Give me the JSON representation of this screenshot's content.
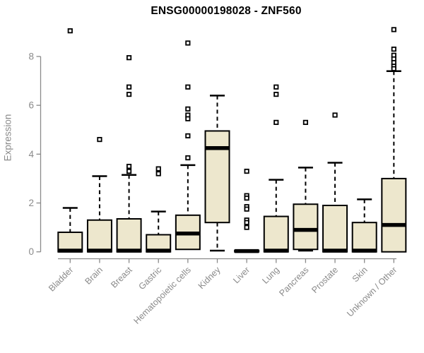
{
  "figure": {
    "title": "ENSG00000198028 - ZNF560",
    "y_axis_label": "Expression"
  },
  "chart_data": {
    "type": "boxplot",
    "title": "ENSG00000198028 - ZNF560",
    "xlabel": "",
    "ylabel": "Expression",
    "ylim": [
      0,
      9.3
    ],
    "yticks": [
      0,
      2,
      4,
      6,
      8
    ],
    "grid": false,
    "legend": null,
    "categories": [
      "Bladder",
      "Brain",
      "Breast",
      "Gastric",
      "Hematopoietic cells",
      "Kidney",
      "Liver",
      "Lung",
      "Pancreas",
      "Prostate",
      "Skin",
      "Unknown / Other"
    ],
    "boxes": [
      {
        "category": "Bladder",
        "whisker_low": 0,
        "q1": 0,
        "median": 0.05,
        "q3": 0.8,
        "whisker_high": 1.8,
        "outliers": [
          9.05
        ]
      },
      {
        "category": "Brain",
        "whisker_low": 0,
        "q1": 0,
        "median": 0.05,
        "q3": 1.3,
        "whisker_high": 3.1,
        "outliers": [
          4.6
        ]
      },
      {
        "category": "Breast",
        "whisker_low": 0,
        "q1": 0,
        "median": 0.05,
        "q3": 1.35,
        "whisker_high": 3.15,
        "outliers": [
          7.95,
          6.75,
          6.45,
          3.5,
          3.3
        ]
      },
      {
        "category": "Gastric",
        "whisker_low": 0,
        "q1": 0,
        "median": 0.05,
        "q3": 0.7,
        "whisker_high": 1.65,
        "outliers": [
          3.4,
          3.2
        ]
      },
      {
        "category": "Hematopoietic cells",
        "whisker_low": 0.1,
        "q1": 0.1,
        "median": 0.75,
        "q3": 1.5,
        "whisker_high": 3.55,
        "outliers": [
          8.55,
          6.75,
          5.85,
          5.6,
          5.45,
          4.75,
          3.85
        ]
      },
      {
        "category": "Kidney",
        "whisker_low": 0.05,
        "q1": 1.2,
        "median": 4.25,
        "q3": 4.95,
        "whisker_high": 6.4,
        "outliers": []
      },
      {
        "category": "Liver",
        "whisker_low": 0,
        "q1": 0,
        "median": 0.03,
        "q3": 0.06,
        "whisker_high": 0.06,
        "outliers": [
          3.3,
          2.3,
          2.2,
          1.85,
          1.75,
          1.3,
          1.2,
          1.0
        ]
      },
      {
        "category": "Lung",
        "whisker_low": 0,
        "q1": 0,
        "median": 0.05,
        "q3": 1.45,
        "whisker_high": 2.95,
        "outliers": [
          6.75,
          6.45,
          5.3
        ]
      },
      {
        "category": "Pancreas",
        "whisker_low": 0.05,
        "q1": 0.1,
        "median": 0.9,
        "q3": 1.95,
        "whisker_high": 3.45,
        "outliers": [
          5.3
        ]
      },
      {
        "category": "Prostate",
        "whisker_low": 0,
        "q1": 0,
        "median": 0.05,
        "q3": 1.9,
        "whisker_high": 3.65,
        "outliers": [
          5.6
        ]
      },
      {
        "category": "Skin",
        "whisker_low": 0,
        "q1": 0,
        "median": 0.05,
        "q3": 1.2,
        "whisker_high": 2.15,
        "outliers": []
      },
      {
        "category": "Unknown / Other",
        "whisker_low": 0,
        "q1": 0,
        "median": 1.1,
        "q3": 3.0,
        "whisker_high": 7.4,
        "outliers": [
          9.1,
          8.3,
          8.05,
          7.9,
          7.75,
          7.6,
          7.5
        ]
      }
    ],
    "colors": {
      "box_fill": "#EDE7CD",
      "box_stroke": "#000000",
      "median": "#000000",
      "whisker": "#000000",
      "outlier_stroke": "#000000",
      "axis_line": "#8a8a8a",
      "axis_text": "#8a8a8a",
      "title": "#000000",
      "background": "#ffffff"
    }
  }
}
